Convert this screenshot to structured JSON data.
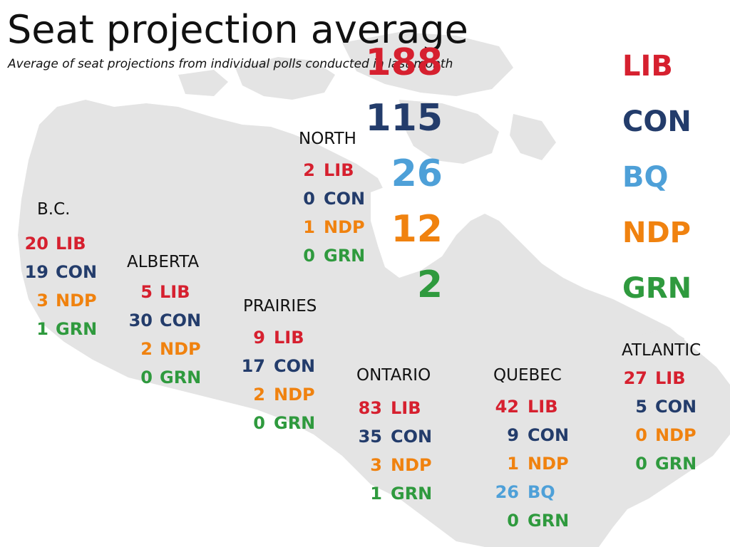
{
  "title": "Seat projection average",
  "subtitle": "Average of seat projections from individual polls conducted in last month",
  "party_colors": {
    "LIB": "#d6202f",
    "CON": "#233c6b",
    "BQ": "#4ea0d8",
    "NDP": "#f0820f",
    "GRN": "#2f9a3e"
  },
  "national": [
    {
      "seats": "188",
      "party": "LIB"
    },
    {
      "seats": "115",
      "party": "CON"
    },
    {
      "seats": "26",
      "party": "BQ"
    },
    {
      "seats": "12",
      "party": "NDP"
    },
    {
      "seats": "2",
      "party": "GRN"
    }
  ],
  "regions": {
    "bc": {
      "name": "B.C.",
      "rows": [
        {
          "seats": "20",
          "party": "LIB"
        },
        {
          "seats": "19",
          "party": "CON"
        },
        {
          "seats": "3",
          "party": "NDP"
        },
        {
          "seats": "1",
          "party": "GRN"
        }
      ]
    },
    "alberta": {
      "name": "ALBERTA",
      "rows": [
        {
          "seats": "5",
          "party": "LIB"
        },
        {
          "seats": "30",
          "party": "CON"
        },
        {
          "seats": "2",
          "party": "NDP"
        },
        {
          "seats": "0",
          "party": "GRN"
        }
      ]
    },
    "north": {
      "name": "NORTH",
      "rows": [
        {
          "seats": "2",
          "party": "LIB"
        },
        {
          "seats": "0",
          "party": "CON"
        },
        {
          "seats": "1",
          "party": "NDP"
        },
        {
          "seats": "0",
          "party": "GRN"
        }
      ]
    },
    "prairies": {
      "name": "PRAIRIES",
      "rows": [
        {
          "seats": "9",
          "party": "LIB"
        },
        {
          "seats": "17",
          "party": "CON"
        },
        {
          "seats": "2",
          "party": "NDP"
        },
        {
          "seats": "0",
          "party": "GRN"
        }
      ]
    },
    "ontario": {
      "name": "ONTARIO",
      "rows": [
        {
          "seats": "83",
          "party": "LIB"
        },
        {
          "seats": "35",
          "party": "CON"
        },
        {
          "seats": "3",
          "party": "NDP"
        },
        {
          "seats": "1",
          "party": "GRN"
        }
      ]
    },
    "quebec": {
      "name": "QUEBEC",
      "rows": [
        {
          "seats": "42",
          "party": "LIB"
        },
        {
          "seats": "9",
          "party": "CON"
        },
        {
          "seats": "1",
          "party": "NDP"
        },
        {
          "seats": "26",
          "party": "BQ"
        },
        {
          "seats": "0",
          "party": "GRN"
        }
      ]
    },
    "atlantic": {
      "name": "ATLANTIC",
      "rows": [
        {
          "seats": "27",
          "party": "LIB"
        },
        {
          "seats": "5",
          "party": "CON"
        },
        {
          "seats": "0",
          "party": "NDP"
        },
        {
          "seats": "0",
          "party": "GRN"
        }
      ]
    }
  }
}
